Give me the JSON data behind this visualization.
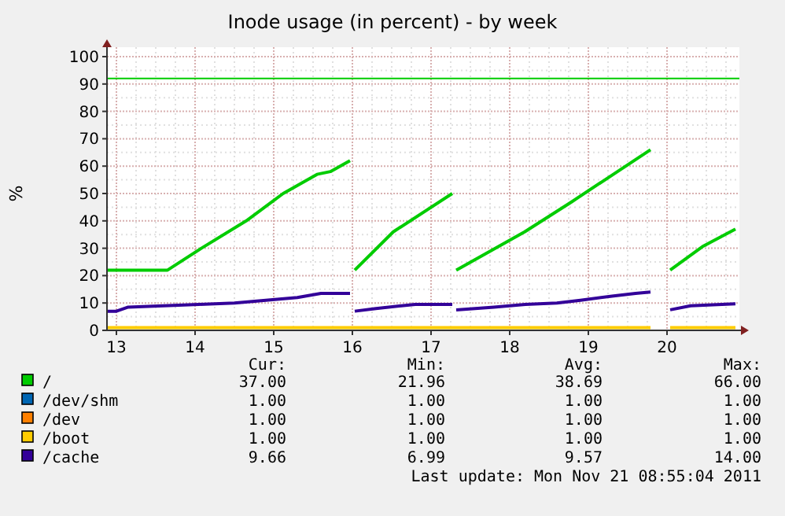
{
  "chart_data": {
    "type": "line",
    "title": "Inode usage (in percent) - by week",
    "ylabel": "%",
    "xlim": [
      12.88,
      20.92
    ],
    "xticks": [
      13,
      14,
      15,
      16,
      17,
      18,
      19,
      20
    ],
    "ylim": [
      0,
      100
    ],
    "yticks": [
      0,
      10,
      20,
      30,
      40,
      50,
      60,
      70,
      80,
      90,
      100
    ],
    "grid": true,
    "legend": "bottom",
    "line_style": "solid",
    "marker": "none",
    "ref_lines": [
      {
        "axis": "y",
        "value": 92,
        "color": "#00cc00"
      }
    ],
    "series": [
      {
        "name": "/",
        "color": "#00cc00",
        "x": [
          12.88,
          13.65,
          14.08,
          14.65,
          15.12,
          15.55,
          15.72,
          15.97,
          16.0,
          16.03,
          16.52,
          17.27,
          17.3,
          17.32,
          18.19,
          18.79,
          19.79,
          19.9,
          20.04,
          20.45,
          20.87
        ],
        "values": [
          22,
          22,
          30,
          40,
          50,
          57,
          58,
          62,
          null,
          22,
          36,
          50,
          null,
          22,
          36,
          47,
          66,
          null,
          22,
          30.6,
          37
        ]
      },
      {
        "name": "/dev/shm",
        "color": "#0066b3"
      },
      {
        "name": "/dev",
        "color": "#ff8000"
      },
      {
        "name": "/boot",
        "color": "#ffcc00",
        "x": [
          12.88,
          19.79,
          19.9,
          20.04,
          20.87
        ],
        "values": [
          1,
          1,
          null,
          1,
          1
        ]
      },
      {
        "name": "/cache",
        "color": "#330099",
        "x": [
          12.88,
          13.0,
          13.15,
          14.05,
          14.5,
          14.9,
          15.3,
          15.6,
          15.97,
          16.0,
          16.03,
          16.3,
          16.8,
          17.27,
          17.3,
          17.32,
          17.8,
          18.2,
          18.6,
          18.9,
          19.3,
          19.6,
          19.79,
          19.9,
          20.04,
          20.3,
          20.87
        ],
        "values": [
          7,
          7,
          8.5,
          9.5,
          10,
          11,
          12,
          13.5,
          13.5,
          null,
          7,
          8,
          9.5,
          9.5,
          null,
          7.5,
          8.5,
          9.5,
          10,
          11,
          12.5,
          13.5,
          14,
          null,
          7.5,
          9,
          9.7
        ]
      }
    ],
    "annotations": [
      "Cur:",
      "Min:",
      "Avg:",
      "Max:",
      "37.00",
      "21.96",
      "38.69",
      "66.00",
      "1.00",
      "1.00",
      "1.00",
      "1.00",
      "1.00",
      "1.00",
      "1.00",
      "1.00",
      "1.00",
      "1.00",
      "1.00",
      "1.00",
      "9.66",
      "6.99",
      "9.57",
      "14.00",
      "Last update: Mon Nov 21 08:55:04 2011"
    ]
  }
}
